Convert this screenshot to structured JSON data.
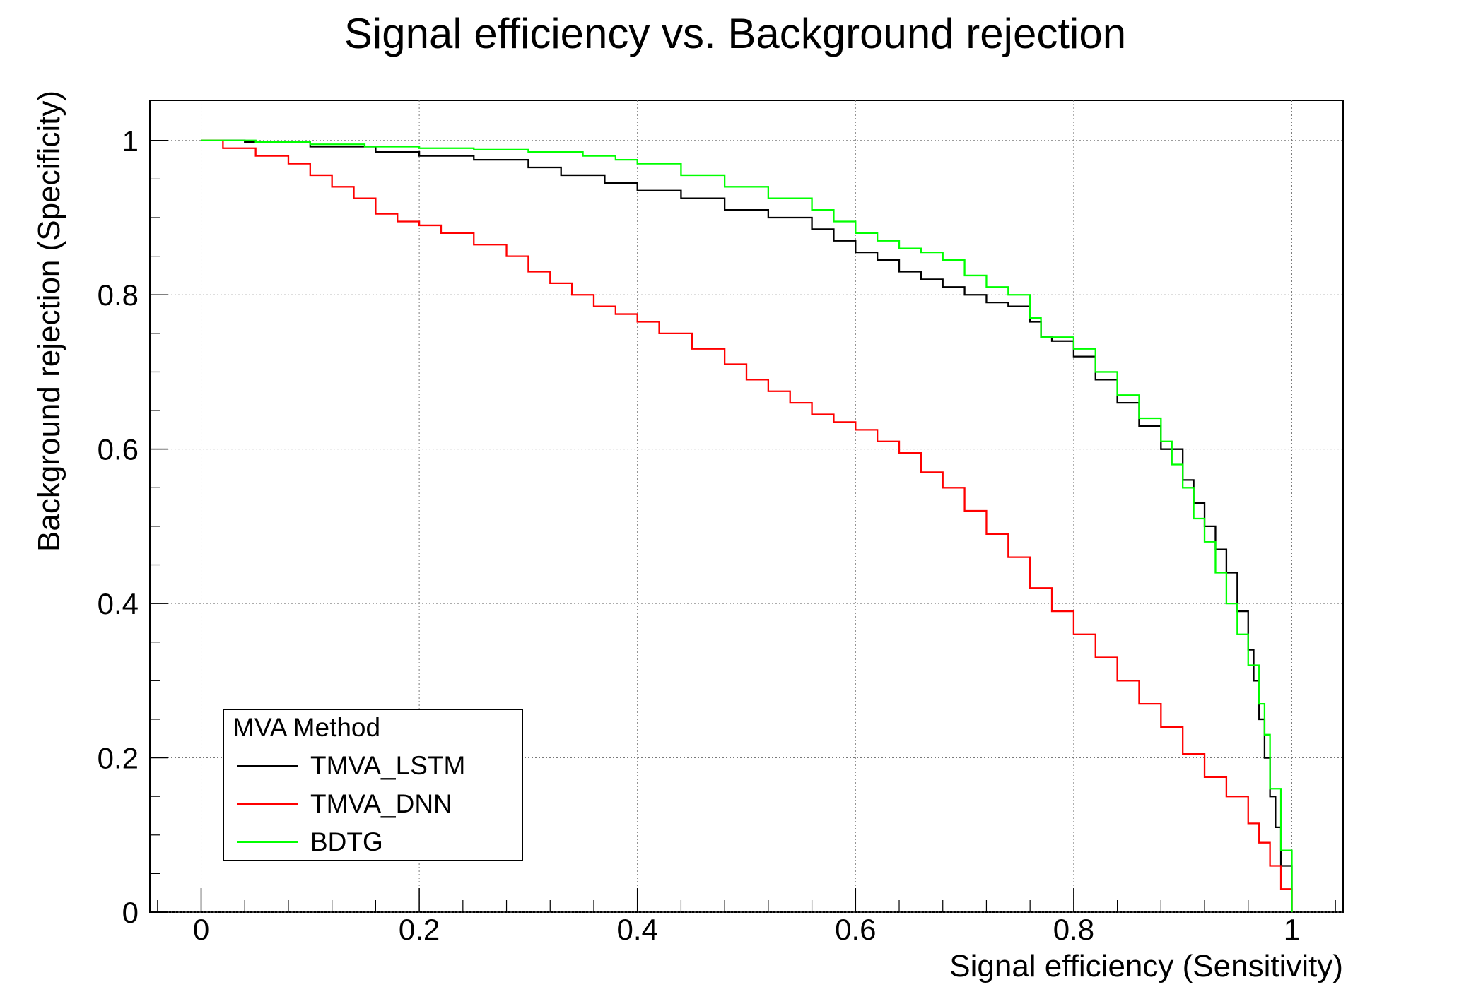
{
  "chart_data": {
    "type": "line",
    "title": "Signal efficiency vs. Background rejection",
    "xlabel": "Signal efficiency (Sensitivity)",
    "ylabel": "Background rejection (Specificity)",
    "xlim": [
      -0.047,
      1.047
    ],
    "ylim": [
      0,
      1.052
    ],
    "x_ticks": [
      "0",
      "0.2",
      "0.4",
      "0.6",
      "0.8",
      "1"
    ],
    "y_ticks": [
      "0",
      "0.2",
      "0.4",
      "0.6",
      "0.8",
      "1"
    ],
    "grid": true,
    "legend": {
      "title": "MVA Method",
      "position": "bottom-left"
    },
    "series": [
      {
        "name": "TMVA_LSTM",
        "color": "#000000",
        "x": [
          0.0,
          0.04,
          0.1,
          0.16,
          0.2,
          0.25,
          0.3,
          0.33,
          0.37,
          0.4,
          0.44,
          0.48,
          0.52,
          0.56,
          0.58,
          0.6,
          0.62,
          0.64,
          0.66,
          0.68,
          0.7,
          0.72,
          0.74,
          0.76,
          0.77,
          0.78,
          0.8,
          0.82,
          0.84,
          0.86,
          0.88,
          0.9,
          0.91,
          0.92,
          0.93,
          0.94,
          0.95,
          0.96,
          0.965,
          0.97,
          0.975,
          0.98,
          0.985,
          0.99,
          1.0
        ],
        "y": [
          1.0,
          0.998,
          0.992,
          0.985,
          0.98,
          0.975,
          0.965,
          0.955,
          0.945,
          0.935,
          0.925,
          0.91,
          0.9,
          0.885,
          0.87,
          0.855,
          0.845,
          0.83,
          0.82,
          0.81,
          0.8,
          0.79,
          0.785,
          0.765,
          0.745,
          0.74,
          0.72,
          0.69,
          0.66,
          0.63,
          0.6,
          0.56,
          0.53,
          0.5,
          0.47,
          0.44,
          0.39,
          0.34,
          0.3,
          0.25,
          0.2,
          0.15,
          0.11,
          0.06,
          0.0
        ]
      },
      {
        "name": "TMVA_DNN",
        "color": "#ff0000",
        "x": [
          0.0,
          0.02,
          0.05,
          0.08,
          0.1,
          0.12,
          0.14,
          0.16,
          0.18,
          0.2,
          0.22,
          0.25,
          0.28,
          0.3,
          0.32,
          0.34,
          0.36,
          0.38,
          0.4,
          0.42,
          0.45,
          0.48,
          0.5,
          0.52,
          0.54,
          0.56,
          0.58,
          0.6,
          0.62,
          0.64,
          0.66,
          0.68,
          0.7,
          0.72,
          0.74,
          0.76,
          0.78,
          0.8,
          0.82,
          0.84,
          0.86,
          0.88,
          0.9,
          0.92,
          0.94,
          0.96,
          0.97,
          0.98,
          0.99,
          1.0
        ],
        "y": [
          1.0,
          0.99,
          0.98,
          0.97,
          0.955,
          0.94,
          0.925,
          0.905,
          0.895,
          0.89,
          0.88,
          0.865,
          0.85,
          0.83,
          0.815,
          0.8,
          0.785,
          0.775,
          0.765,
          0.75,
          0.73,
          0.71,
          0.69,
          0.675,
          0.66,
          0.645,
          0.635,
          0.625,
          0.61,
          0.595,
          0.57,
          0.55,
          0.52,
          0.49,
          0.46,
          0.42,
          0.39,
          0.36,
          0.33,
          0.3,
          0.27,
          0.24,
          0.205,
          0.175,
          0.15,
          0.115,
          0.09,
          0.06,
          0.03,
          0.0
        ]
      },
      {
        "name": "BDTG",
        "color": "#00ff00",
        "x": [
          0.0,
          0.05,
          0.1,
          0.15,
          0.2,
          0.25,
          0.3,
          0.35,
          0.38,
          0.4,
          0.44,
          0.48,
          0.52,
          0.56,
          0.58,
          0.6,
          0.62,
          0.64,
          0.66,
          0.68,
          0.7,
          0.72,
          0.74,
          0.76,
          0.77,
          0.78,
          0.8,
          0.82,
          0.84,
          0.86,
          0.88,
          0.89,
          0.9,
          0.91,
          0.92,
          0.93,
          0.94,
          0.95,
          0.96,
          0.97,
          0.975,
          0.98,
          0.99,
          1.0
        ],
        "y": [
          1.0,
          0.998,
          0.995,
          0.992,
          0.99,
          0.988,
          0.985,
          0.98,
          0.975,
          0.97,
          0.955,
          0.94,
          0.925,
          0.91,
          0.895,
          0.88,
          0.87,
          0.86,
          0.855,
          0.845,
          0.825,
          0.81,
          0.8,
          0.77,
          0.745,
          0.745,
          0.73,
          0.7,
          0.67,
          0.64,
          0.61,
          0.58,
          0.55,
          0.51,
          0.48,
          0.44,
          0.4,
          0.36,
          0.32,
          0.27,
          0.23,
          0.16,
          0.08,
          0.0
        ]
      }
    ]
  }
}
